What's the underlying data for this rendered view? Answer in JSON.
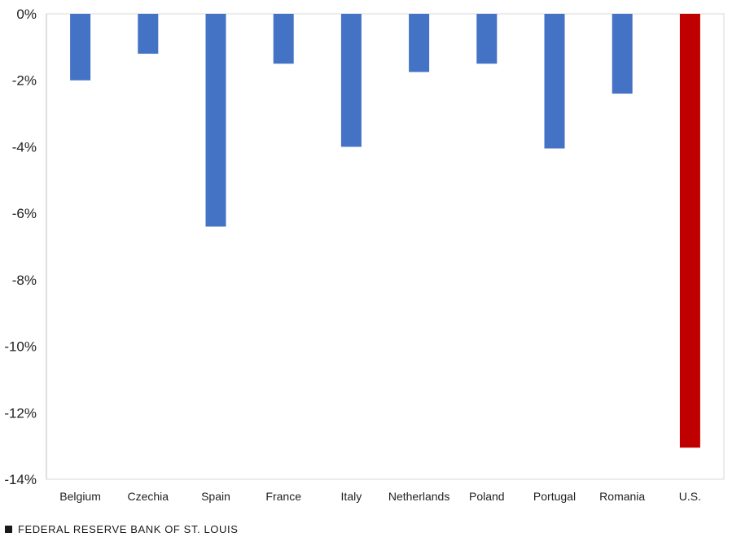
{
  "chart_data": {
    "type": "bar",
    "categories": [
      "Belgium",
      "Czechia",
      "Spain",
      "France",
      "Italy",
      "Netherlands",
      "Poland",
      "Portugal",
      "Romania",
      "U.S."
    ],
    "values": [
      -2.0,
      -1.2,
      -6.4,
      -1.5,
      -4.0,
      -1.75,
      -1.5,
      -4.05,
      -2.4,
      -13.05
    ],
    "bar_colors": [
      "#4472c4",
      "#4472c4",
      "#4472c4",
      "#4472c4",
      "#4472c4",
      "#4472c4",
      "#4472c4",
      "#4472c4",
      "#4472c4",
      "#c00000"
    ],
    "ylim": [
      -14,
      0
    ],
    "yticks": [
      0,
      -2,
      -4,
      -6,
      -8,
      -10,
      -12,
      -14
    ],
    "ytick_labels": [
      "0%",
      "-2%",
      "-4%",
      "-6%",
      "-8%",
      "-10%",
      "-12%",
      "-14%"
    ],
    "title": "",
    "xlabel": "",
    "ylabel": "",
    "grid": false,
    "legend": "none"
  },
  "footer": {
    "source": "FEDERAL RESERVE BANK OF ST. LOUIS",
    "icon": "square-icon"
  }
}
